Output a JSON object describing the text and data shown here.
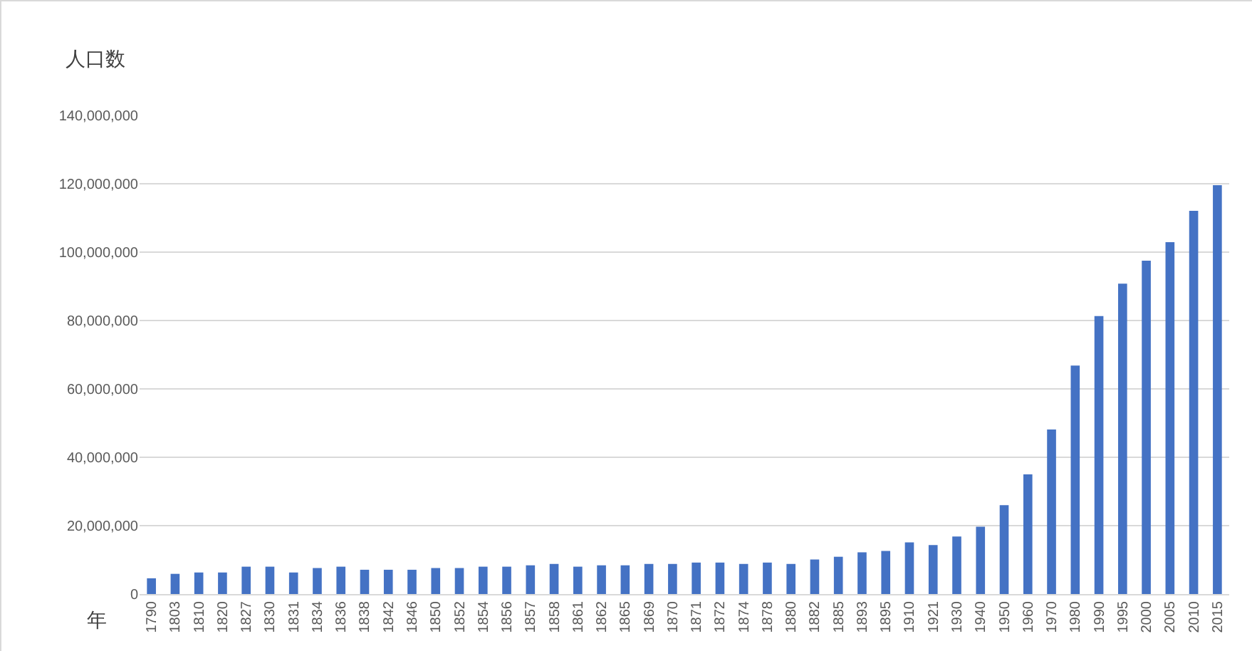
{
  "chart_data": {
    "type": "bar",
    "xlabel": "年",
    "ylabel": "人口数",
    "categories": [
      "1790",
      "1803",
      "1810",
      "1820",
      "1827",
      "1830",
      "1831",
      "1834",
      "1836",
      "1838",
      "1842",
      "1846",
      "1850",
      "1852",
      "1854",
      "1856",
      "1857",
      "1858",
      "1861",
      "1862",
      "1865",
      "1869",
      "1870",
      "1871",
      "1872",
      "1874",
      "1878",
      "1880",
      "1882",
      "1885",
      "1893",
      "1895",
      "1910",
      "1921",
      "1930",
      "1940",
      "1950",
      "1960",
      "1970",
      "1980",
      "1990",
      "1995",
      "2000",
      "2005",
      "2010",
      "2015"
    ],
    "values": [
      4600000,
      5900000,
      6300000,
      6300000,
      8000000,
      8000000,
      6300000,
      7600000,
      8000000,
      7100000,
      7100000,
      7100000,
      7600000,
      7600000,
      8000000,
      8000000,
      8400000,
      8800000,
      8000000,
      8400000,
      8400000,
      8800000,
      8800000,
      9200000,
      9200000,
      8800000,
      9200000,
      8800000,
      10100000,
      10900000,
      12200000,
      12600000,
      15100000,
      14300000,
      16800000,
      19700000,
      26000000,
      35000000,
      48100000,
      66800000,
      81300000,
      90800000,
      97500000,
      102900000,
      112100000,
      119600000
    ],
    "color": "#4472c4",
    "ylim": [
      0,
      140000000
    ],
    "yticks": [
      {
        "value": 0,
        "label": "0"
      },
      {
        "value": 20000000,
        "label": "20,000,000"
      },
      {
        "value": 40000000,
        "label": "40,000,000"
      },
      {
        "value": 60000000,
        "label": "60,000,000"
      },
      {
        "value": 80000000,
        "label": "80,000,000"
      },
      {
        "value": 100000000,
        "label": "100,000,000"
      },
      {
        "value": 120000000,
        "label": "120,000,000"
      },
      {
        "value": 140000000,
        "label": "140,000,000"
      }
    ],
    "grid": "y"
  }
}
